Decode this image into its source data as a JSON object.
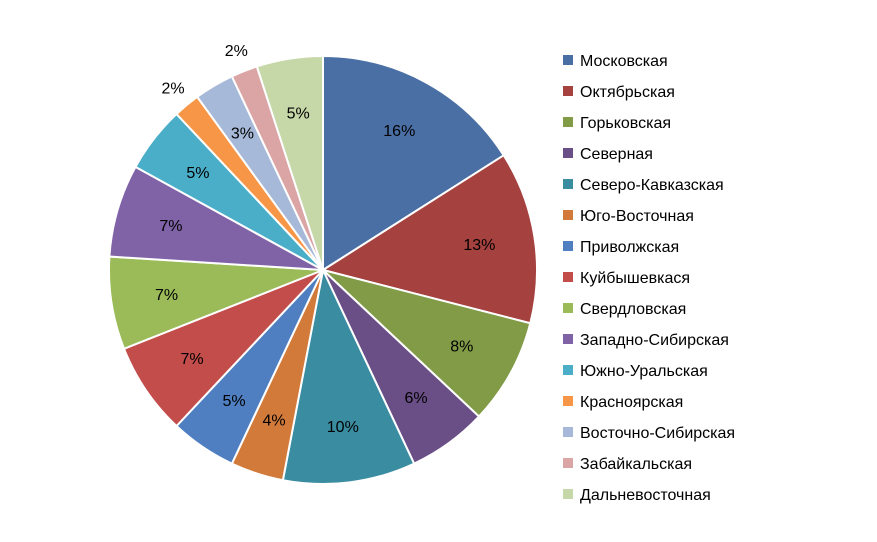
{
  "chart_data": {
    "type": "pie",
    "title": "",
    "legend_position": "right",
    "slices": [
      {
        "label": "Московская",
        "value": 16,
        "value_label": "16%",
        "color": "#4A6FA5"
      },
      {
        "label": "Октябрьская",
        "value": 13,
        "value_label": "13%",
        "color": "#A5413F"
      },
      {
        "label": "Горьковская",
        "value": 8,
        "value_label": "8%",
        "color": "#819B47"
      },
      {
        "label": "Северная",
        "value": 6,
        "value_label": "6%",
        "color": "#6A4E86"
      },
      {
        "label": "Северо-Кавказская",
        "value": 10,
        "value_label": "10%",
        "color": "#3A8CA1"
      },
      {
        "label": "Юго-Восточная",
        "value": 4,
        "value_label": "4%",
        "color": "#D27A3A"
      },
      {
        "label": "Приволжская",
        "value": 5,
        "value_label": "5%",
        "color": "#4F7FC1"
      },
      {
        "label": "Куйбышевкася",
        "value": 7,
        "value_label": "7%",
        "color": "#C24D4A"
      },
      {
        "label": "Свердловская",
        "value": 7,
        "value_label": "7%",
        "color": "#9BBB59"
      },
      {
        "label": "Западно-Сибирская",
        "value": 7,
        "value_label": "7%",
        "color": "#8063A6"
      },
      {
        "label": "Южно-Уральская",
        "value": 5,
        "value_label": "5%",
        "color": "#4BAEC8"
      },
      {
        "label": "Красноярская",
        "value": 2,
        "value_label": "2%",
        "color": "#F79646"
      },
      {
        "label": "Восточно-Сибирская",
        "value": 3,
        "value_label": "3%",
        "color": "#A7B9D9"
      },
      {
        "label": "Забайкальская",
        "value": 2,
        "value_label": "2%",
        "color": "#DBA5A5"
      },
      {
        "label": "Дальневосточная",
        "value": 5,
        "value_label": "5%",
        "color": "#C6D7A8"
      }
    ]
  }
}
